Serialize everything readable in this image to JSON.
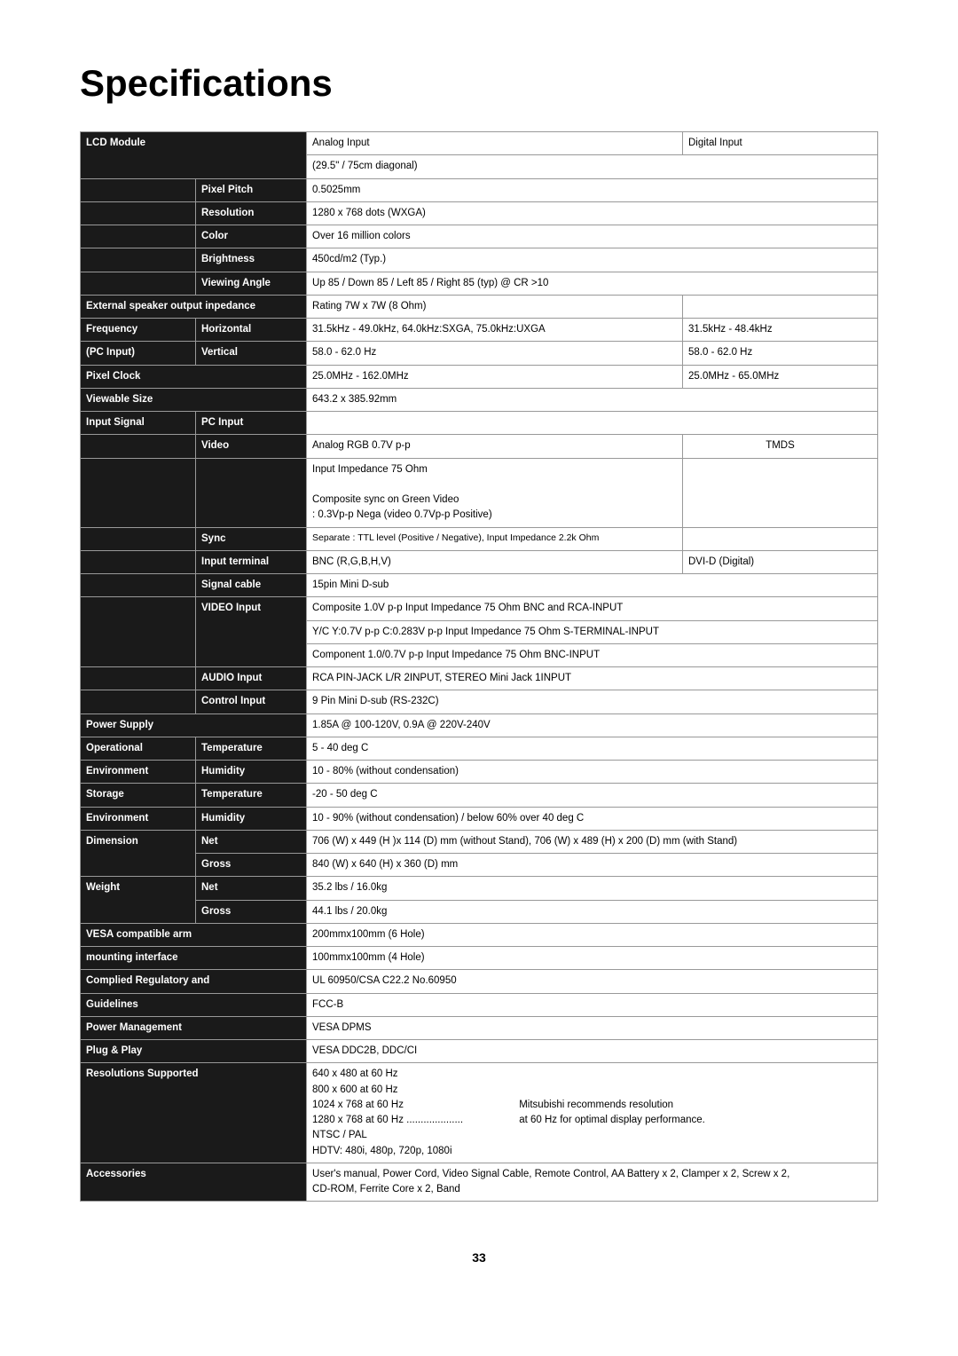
{
  "title": "Specifications",
  "pageNumber": "33",
  "headers": {
    "analog": "Analog Input",
    "digital": "Digital Input"
  },
  "rows": {
    "lcd_module": {
      "label": "LCD Module",
      "v": "(29.5\" / 75cm diagonal)"
    },
    "pixel_pitch": {
      "label": "Pixel Pitch",
      "v": "0.5025mm"
    },
    "resolution": {
      "label": "Resolution",
      "v": "1280 x 768 dots (WXGA)"
    },
    "color": {
      "label": "Color",
      "v": "Over 16 million colors"
    },
    "brightness": {
      "label": "Brightness",
      "v": "450cd/m2 (Typ.)"
    },
    "viewing_angle": {
      "label": "Viewing Angle",
      "v": "Up 85 / Down 85 / Left 85 /  Right 85 (typ) @ CR >10"
    },
    "ext_speaker": {
      "label": "External speaker output inpedance",
      "v": "Rating 7W x 7W (8 Ohm)"
    },
    "freq": {
      "label1": "Frequency",
      "label2": "(PC Input)",
      "hLabel": "Horizontal",
      "vLabel": "Vertical",
      "hA": "31.5kHz - 49.0kHz, 64.0kHz:SXGA, 75.0kHz:UXGA",
      "hD": "31.5kHz - 48.4kHz",
      "vA": "58.0 - 62.0 Hz",
      "vD": "58.0 - 62.0 Hz"
    },
    "pixel_clock": {
      "label": "Pixel Clock",
      "a": "25.0MHz - 162.0MHz",
      "d": "25.0MHz - 65.0MHz"
    },
    "viewable_size": {
      "label": "Viewable Size",
      "v": "643.2 x 385.92mm"
    },
    "input_signal": {
      "label": "Input Signal",
      "pc": "PC Input"
    },
    "video": {
      "label": "Video",
      "a": "Analog RGB 0.7V p-p",
      "d": "TMDS",
      "sub": "Input Impedance 75 Ohm\n\nComposite sync on Green Video\n    : 0.3Vp-p Nega (video 0.7Vp-p Positive)"
    },
    "sync": {
      "label": "Sync",
      "v": "Separate : TTL level (Positive / Negative), Input Impedance 2.2k Ohm"
    },
    "input_terminal": {
      "label": "Input terminal",
      "a": "BNC (R,G,B,H,V)",
      "d": "DVI-D (Digital)"
    },
    "signal_cable": {
      "label": "Signal cable",
      "v": "15pin Mini D-sub"
    },
    "video_input": {
      "label": "VIDEO Input",
      "l1": "Composite 1.0V p-p Input Impedance 75 Ohm BNC and RCA-INPUT",
      "l2": "Y/C Y:0.7V p-p C:0.283V p-p Input Impedance 75 Ohm S-TERMINAL-INPUT",
      "l3": "Component 1.0/0.7V p-p Input Impedance 75 Ohm BNC-INPUT"
    },
    "audio_input": {
      "label": "AUDIO Input",
      "v": "RCA PIN-JACK L/R 2INPUT, STEREO Mini Jack 1INPUT"
    },
    "control_input": {
      "label": "Control Input",
      "v": "9 Pin Mini D-sub (RS-232C)"
    },
    "power_supply": {
      "label": "Power Supply",
      "v": "1.85A @ 100-120V, 0.9A @ 220V-240V"
    },
    "op_env": {
      "label1": "Operational",
      "label2": "Environment",
      "tLabel": "Temperature",
      "hLabel": "Humidity",
      "t": "5 - 40 deg C",
      "h": "10 - 80% (without condensation)"
    },
    "st_env": {
      "label1": "Storage",
      "label2": "Environment",
      "tLabel": "Temperature",
      "hLabel": "Humidity",
      "t": "-20 - 50 deg C",
      "h": "10 - 90% (without condensation) / below 60% over 40 deg C"
    },
    "dimension": {
      "label": "Dimension",
      "nLabel": "Net",
      "gLabel": "Gross",
      "n": "706 (W) x 449 (H )x 114 (D) mm (without Stand), 706 (W) x 489 (H) x 200 (D) mm (with Stand)",
      "g": "840 (W) x 640 (H) x 360 (D) mm"
    },
    "weight": {
      "label": "Weight",
      "nLabel": "Net",
      "gLabel": "Gross",
      "n": "35.2 lbs / 16.0kg",
      "g": "44.1 lbs / 20.0kg"
    },
    "vesa_arm": {
      "label1": "VESA compatible arm",
      "label2": "mounting interface",
      "l1": "200mmx100mm (6 Hole)",
      "l2": "100mmx100mm (4 Hole)"
    },
    "reg": {
      "label1": "Complied Regulatory and",
      "label2": "Guidelines",
      "l1": "UL 60950/CSA C22.2 No.60950",
      "l2": "FCC-B"
    },
    "power_mgmt": {
      "label": "Power Management",
      "v": "VESA DPMS"
    },
    "plugplay": {
      "label": "Plug & Play",
      "v": "VESA DDC2B, DDC/CI"
    },
    "res_sup": {
      "label": "Resolutions Supported",
      "left": "640 x 480 at 60 Hz\n800 x 600 at 60 Hz\n1024 x 768 at 60 Hz\n1280 x 768 at 60 Hz ....................\nNTSC / PAL\nHDTV:   480i, 480p, 720p, 1080i",
      "right": "\n\nMitsubishi recommends resolution\nat 60 Hz for optimal display performance."
    },
    "accessories": {
      "label": "Accessories",
      "v": "User's manual, Power Cord, Video Signal Cable, Remote Control, AA Battery x 2, Clamper x 2, Screw x 2,\nCD-ROM, Ferrite Core x 2, Band"
    }
  }
}
